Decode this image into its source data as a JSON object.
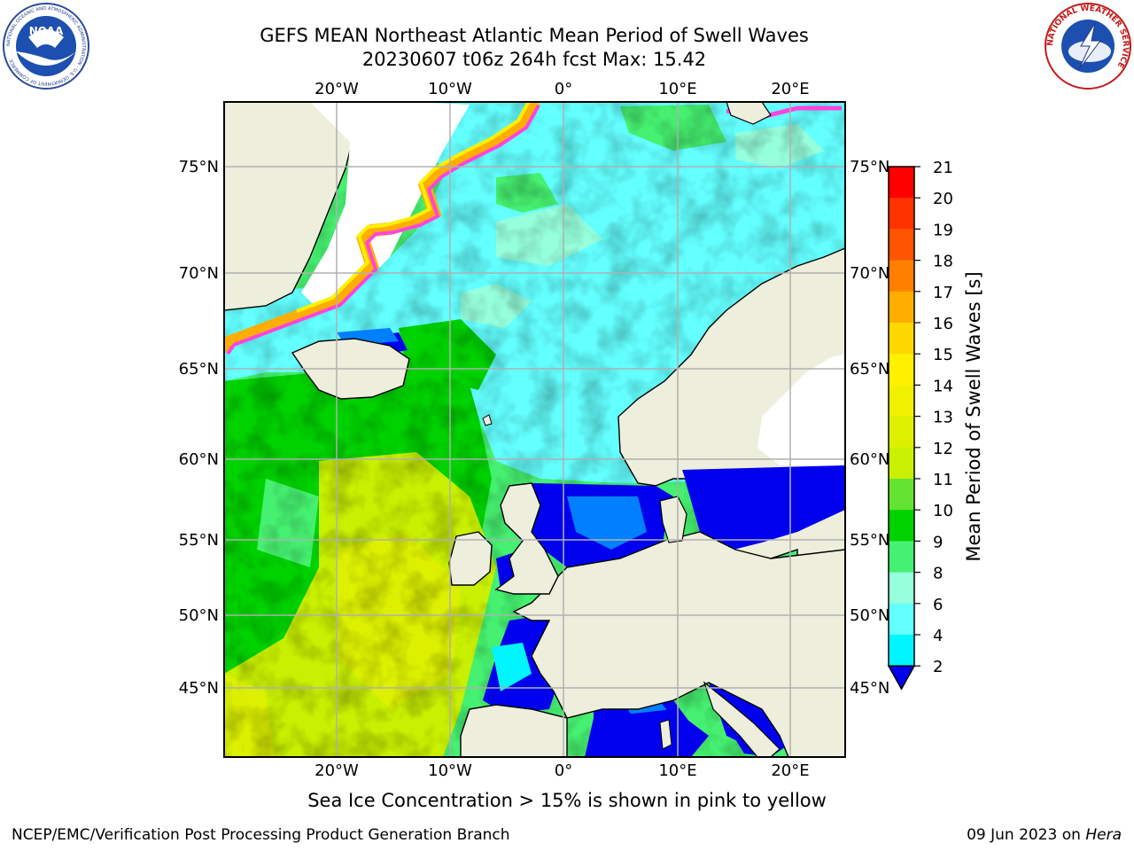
{
  "title": {
    "line1": "GEFS MEAN Northeast Atlantic Mean Period of Swell Waves",
    "line2": "20230607 t06z 264h fcst   Max: 15.42"
  },
  "map": {
    "lon_labels": [
      "20°W",
      "10°W",
      "0°",
      "10°E",
      "20°E"
    ],
    "lat_labels": [
      "75°N",
      "70°N",
      "65°N",
      "60°N",
      "55°N",
      "50°N",
      "45°N"
    ],
    "ice_note": "Sea Ice Concentration > 15% is shown in pink to yellow"
  },
  "colorbar": {
    "label": "Mean Period of Swell Waves [s]",
    "ticks": [
      "21",
      "20",
      "19",
      "18",
      "17",
      "16",
      "15",
      "14",
      "13",
      "12",
      "11",
      "10",
      "9",
      "8",
      "6",
      "4",
      "2"
    ],
    "colors": [
      "#ff0000",
      "#ff3300",
      "#ff5500",
      "#ff8000",
      "#ffae00",
      "#ffd800",
      "#fff000",
      "#f0f000",
      "#dcf000",
      "#c8f000",
      "#64e432",
      "#00d200",
      "#46f070",
      "#96ffdc",
      "#64ffff",
      "#00f5ff",
      "#0080ff",
      "#0000ee"
    ]
  },
  "footer": {
    "left": "NCEP/EMC/Verification Post Processing Product Generation Branch",
    "date": "09 Jun 2023 on ",
    "machine": "Hera"
  },
  "logos": {
    "noaa": "NOAA",
    "noaa_ring": "NATIONAL OCEANIC AND ATMOSPHERIC ADMINISTRATION · U.S. DEPARTMENT OF COMMERCE",
    "nws_ring": "NATIONAL WEATHER SERVICE"
  }
}
